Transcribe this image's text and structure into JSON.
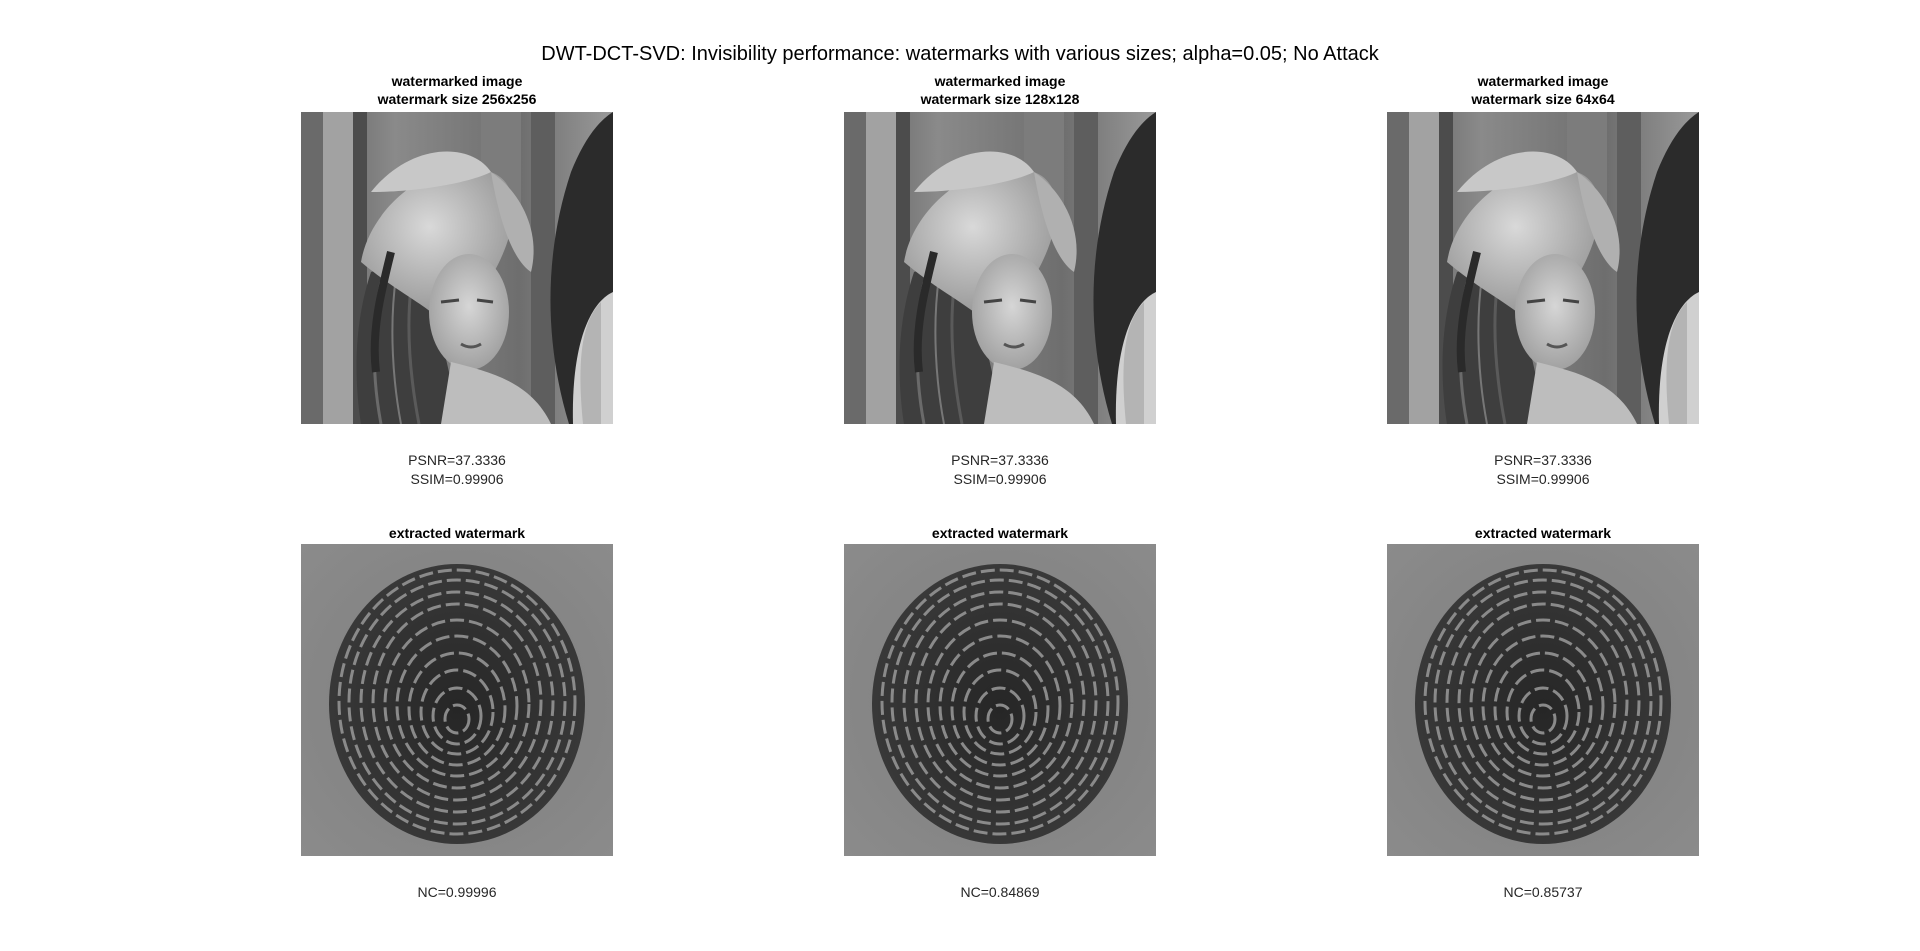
{
  "figure": {
    "title": "DWT-DCT-SVD: Invisibility performance: watermarks with various sizes; alpha=0.05; No Attack"
  },
  "top_row": [
    {
      "title_line1": "watermarked image",
      "title_line2": "watermark size 256x256",
      "psnr": "PSNR=37.3336",
      "ssim": "SSIM=0.99906"
    },
    {
      "title_line1": "watermarked image",
      "title_line2": "watermark size 128x128",
      "psnr": "PSNR=37.3336",
      "ssim": "SSIM=0.99906"
    },
    {
      "title_line1": "watermarked image",
      "title_line2": "watermark size 64x64",
      "psnr": "PSNR=37.3336",
      "ssim": "SSIM=0.99906"
    }
  ],
  "bottom_row": [
    {
      "title": "extracted watermark",
      "nc": "NC=0.99996"
    },
    {
      "title": "extracted watermark",
      "nc": "NC=0.84869"
    },
    {
      "title": "extracted watermark",
      "nc": "NC=0.85737"
    }
  ]
}
